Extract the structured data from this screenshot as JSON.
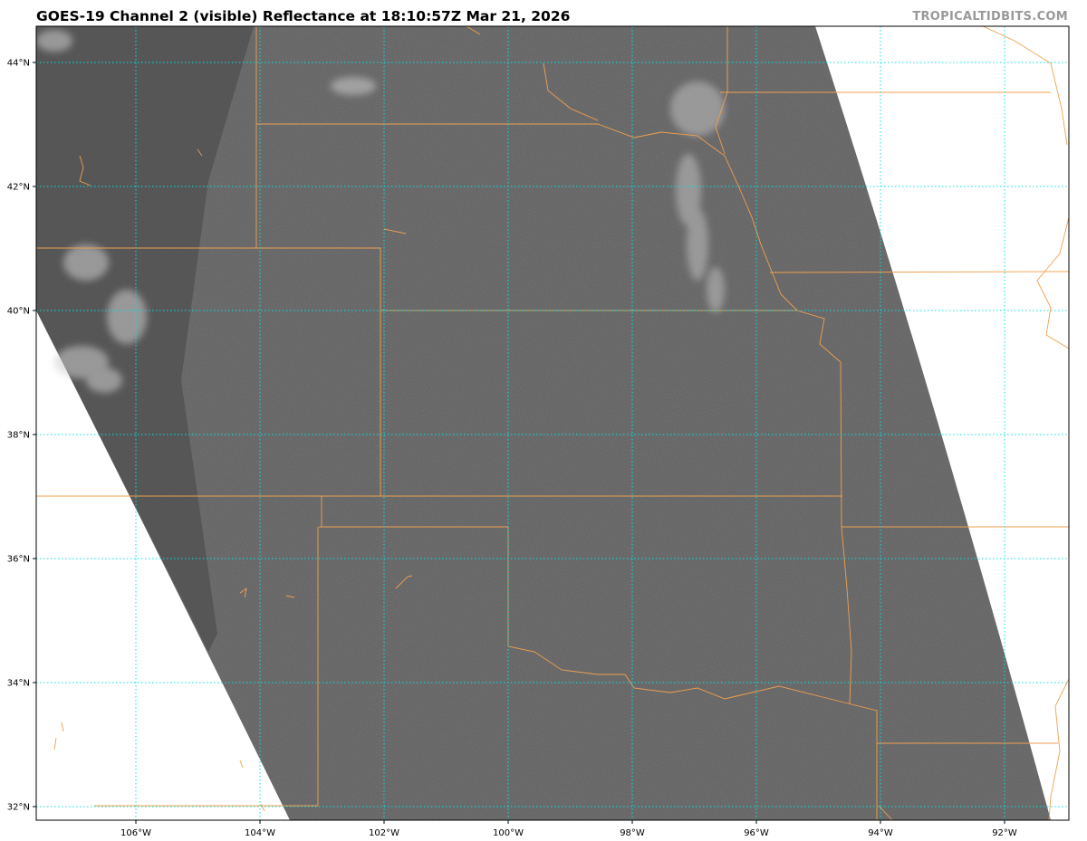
{
  "title": "GOES-19 Channel 2 (visible) Reflectance at 18:10:57Z Mar 21, 2026",
  "credit": "TROPICALTIDBITS.COM",
  "map": {
    "product": "visible reflectance",
    "longitudes": [
      -106,
      -104,
      -102,
      -100,
      -98,
      -96,
      -94,
      -92
    ],
    "latitudes": [
      44,
      42,
      40,
      38,
      36,
      34,
      32
    ],
    "lon_labels": [
      "106°W",
      "104°W",
      "102°W",
      "100°W",
      "98°W",
      "96°W",
      "94°W",
      "92°W"
    ],
    "lat_labels": [
      "44°N",
      "42°N",
      "40°N",
      "38°N",
      "36°N",
      "34°N",
      "32°N"
    ],
    "colors": {
      "gridline": "#00e5e5",
      "border": "#f0a050",
      "imagery": "#5e5e5e"
    }
  }
}
